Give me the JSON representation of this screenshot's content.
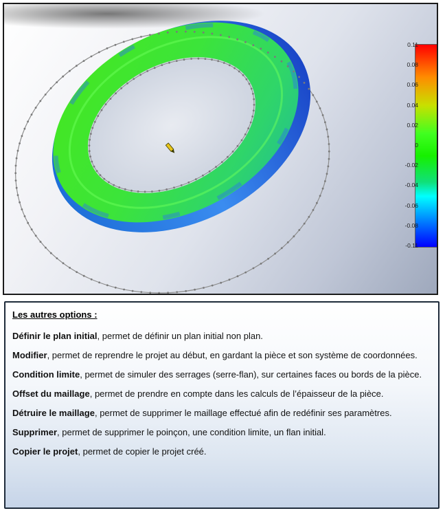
{
  "scale": {
    "ticks": [
      "0.11",
      "0.08",
      "0.06",
      "0.04",
      "0.02",
      "0",
      "-0.02",
      "-0.04",
      "-0.06",
      "-0.08",
      "-0.11"
    ],
    "colors": {
      "max": "#ff0000",
      "mid": "#16f000",
      "min": "#0000ff"
    }
  },
  "options": {
    "title": "Les autres options :",
    "items": [
      {
        "name": "Définir le plan initial",
        "sep": ", ",
        "desc": "permet de définir un plan initial non plan."
      },
      {
        "name": "Modifier",
        "sep": ", ",
        "desc": "permet de reprendre le projet au début, en gardant la pièce et son système de coordonnées."
      },
      {
        "name": "Condition limite",
        "sep": ", ",
        "desc": "permet de simuler des serrages (serre-flan), sur certaines faces ou bords de la pièce."
      },
      {
        "name": "Offset du maillage",
        "sep": ", ",
        "desc": "permet de prendre en compte dans les calculs de l’épaisseur de la pièce."
      },
      {
        "name": "Détruire le maillage",
        "sep": ", ",
        "desc": "permet de supprimer le maillage effectué afin de redéfinir ses paramètres."
      },
      {
        "name": "Supprimer",
        "sep": ", ",
        "desc": "permet de supprimer le poinçon, une condition limite, un flan initial."
      },
      {
        "name": "Copier le projet",
        "sep": ", ",
        "desc": "permet de copier le projet créé."
      }
    ]
  }
}
